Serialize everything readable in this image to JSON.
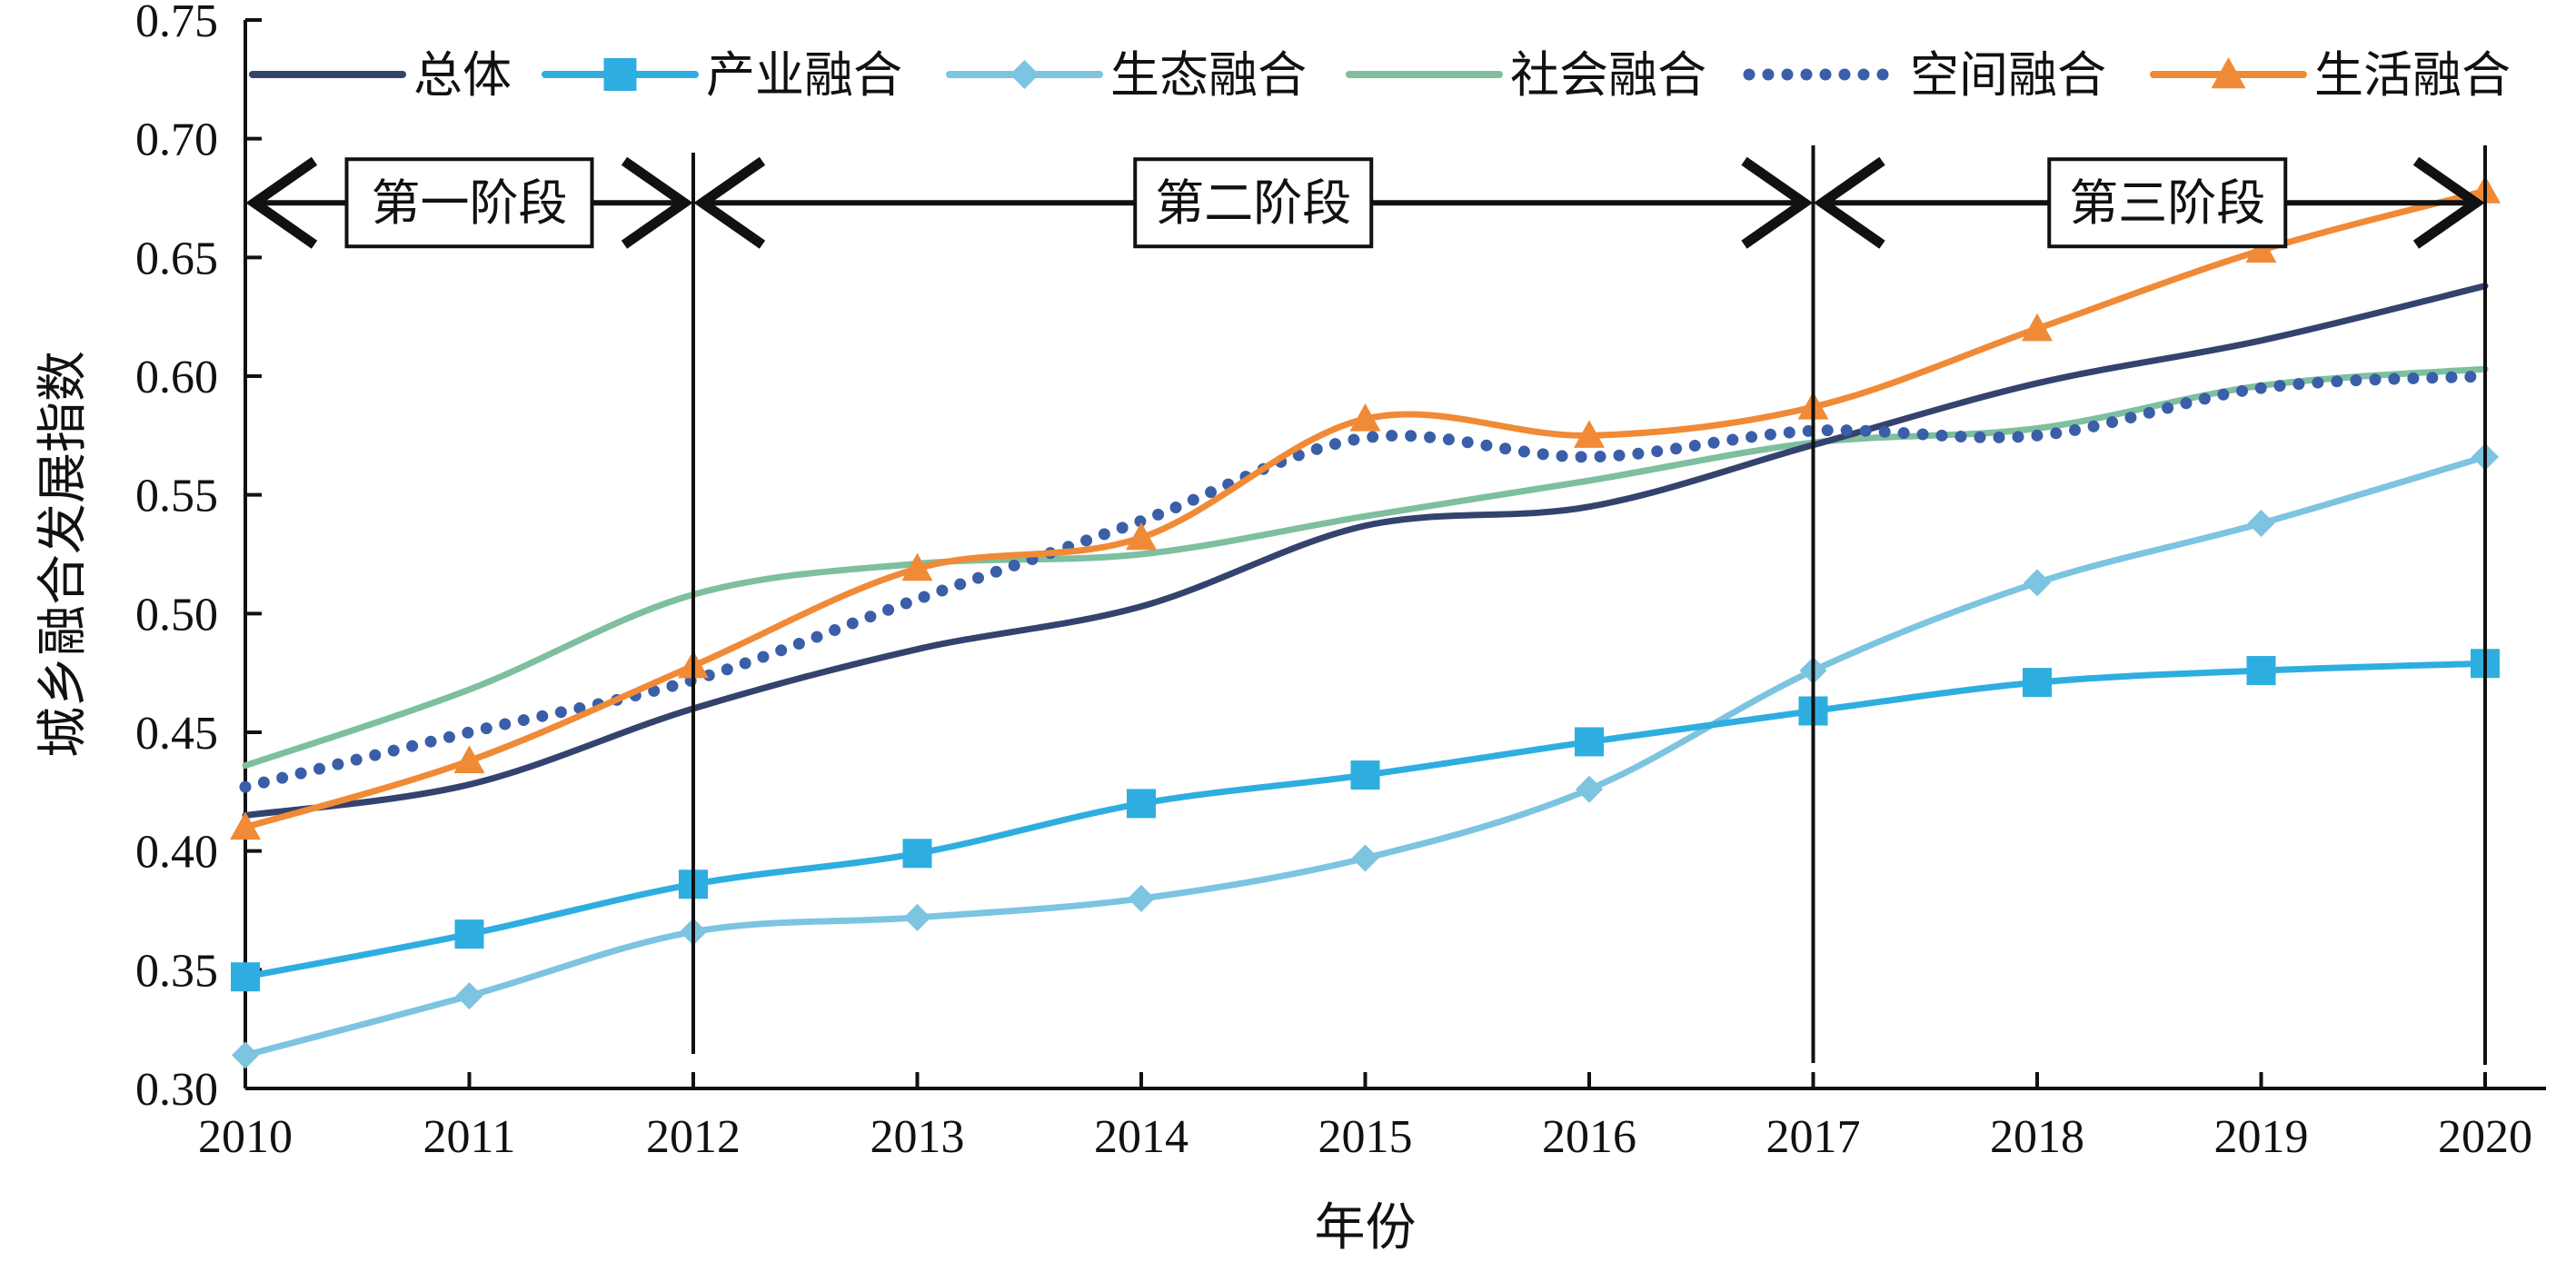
{
  "chart_data": {
    "type": "line",
    "xlabel": "年份",
    "ylabel": "城乡融合发展指数",
    "ylim": [
      0.3,
      0.75
    ],
    "xlim": [
      2010,
      2020
    ],
    "x": [
      2010,
      2011,
      2012,
      2013,
      2014,
      2015,
      2016,
      2017,
      2018,
      2019,
      2020
    ],
    "x_ticks": [
      "2010",
      "2011",
      "2012",
      "2013",
      "2014",
      "2015",
      "2016",
      "2017",
      "2018",
      "2019",
      "2020"
    ],
    "y_ticks": [
      "0.30",
      "0.35",
      "0.40",
      "0.45",
      "0.50",
      "0.55",
      "0.60",
      "0.65",
      "0.70",
      "0.75"
    ],
    "y_tick_values": [
      0.3,
      0.35,
      0.4,
      0.45,
      0.5,
      0.55,
      0.6,
      0.65,
      0.7,
      0.75
    ],
    "grid": false,
    "legend_position": "top",
    "series": [
      {
        "name": "总体",
        "color": "#34426e",
        "style": "solid",
        "marker": "none",
        "values": [
          0.415,
          0.428,
          0.46,
          0.485,
          0.503,
          0.537,
          0.545,
          0.571,
          0.597,
          0.615,
          0.638
        ]
      },
      {
        "name": "产业融合",
        "color": "#2eaee0",
        "style": "solid",
        "marker": "square",
        "values": [
          0.347,
          0.365,
          0.386,
          0.399,
          0.42,
          0.432,
          0.446,
          0.459,
          0.471,
          0.476,
          0.479
        ]
      },
      {
        "name": "生态融合",
        "color": "#7cc4e0",
        "style": "solid",
        "marker": "diamond",
        "values": [
          0.314,
          0.339,
          0.366,
          0.372,
          0.38,
          0.397,
          0.426,
          0.476,
          0.513,
          0.538,
          0.566
        ]
      },
      {
        "name": "社会融合",
        "color": "#7dbf9e",
        "style": "solid",
        "marker": "none",
        "values": [
          0.436,
          0.468,
          0.508,
          0.521,
          0.525,
          0.541,
          0.556,
          0.572,
          0.578,
          0.596,
          0.603
        ]
      },
      {
        "name": "空间融合",
        "color": "#3a5ea8",
        "style": "dotted",
        "marker": "none",
        "values": [
          0.427,
          0.45,
          0.472,
          0.506,
          0.539,
          0.574,
          0.566,
          0.577,
          0.575,
          0.595,
          0.6
        ]
      },
      {
        "name": "生活融合",
        "color": "#f08a36",
        "style": "solid",
        "marker": "triangle",
        "values": [
          0.41,
          0.438,
          0.478,
          0.519,
          0.532,
          0.582,
          0.575,
          0.587,
          0.62,
          0.653,
          0.678
        ]
      }
    ],
    "stages": [
      {
        "label": "第一阶段",
        "from": 2010,
        "to": 2012
      },
      {
        "label": "第二阶段",
        "from": 2012,
        "to": 2017
      },
      {
        "label": "第三阶段",
        "from": 2017,
        "to": 2020
      }
    ],
    "stage_dividers": [
      2012,
      2017,
      2020
    ],
    "stage_arrow_y": 0.673
  }
}
